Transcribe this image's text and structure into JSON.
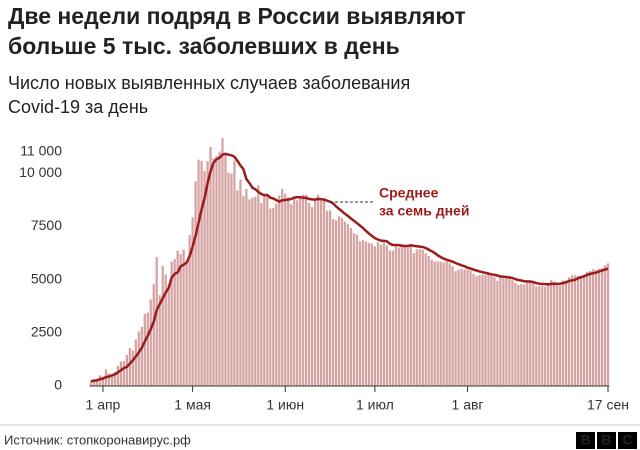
{
  "chart_data": {
    "type": "bar",
    "title": [
      "Две недели подряд в России выявляют",
      "больше 5 тыс. заболевших в день"
    ],
    "subtitle": [
      "Число новых выявленных случаев заболевания",
      "Covid-19 за день"
    ],
    "source": "Источник: стопкоронавирус.рф",
    "logo": [
      "B",
      "B",
      "C"
    ],
    "color": "#d6a3a3",
    "categories": [
      null,
      null,
      null,
      null,
      "1 апр",
      null,
      null,
      null,
      null,
      null,
      null,
      null,
      null,
      null,
      null,
      null,
      null,
      null,
      null,
      null,
      null,
      null,
      null,
      null,
      null,
      null,
      null,
      null,
      null,
      null,
      null,
      null,
      null,
      null,
      "1 мая",
      null,
      null,
      null,
      null,
      null,
      null,
      null,
      null,
      null,
      null,
      null,
      null,
      null,
      null,
      null,
      null,
      null,
      null,
      null,
      null,
      null,
      null,
      null,
      null,
      null,
      null,
      null,
      null,
      null,
      null,
      "1 июн",
      null,
      null,
      null,
      null,
      null,
      null,
      null,
      null,
      null,
      null,
      null,
      null,
      null,
      null,
      null,
      null,
      null,
      null,
      null,
      null,
      null,
      null,
      null,
      null,
      null,
      null,
      null,
      null,
      null,
      "1 июл",
      null,
      null,
      null,
      null,
      null,
      null,
      null,
      null,
      null,
      null,
      null,
      null,
      null,
      null,
      null,
      null,
      null,
      null,
      null,
      null,
      null,
      null,
      null,
      null,
      null,
      null,
      null,
      null,
      null,
      null,
      "1 авг",
      null,
      null,
      null,
      null,
      null,
      null,
      null,
      null,
      null,
      null,
      null,
      null,
      null,
      null,
      null,
      null,
      null,
      null,
      null,
      null,
      null,
      null,
      null,
      null,
      null,
      null,
      null,
      null,
      null,
      null,
      null,
      null,
      null,
      null,
      null,
      null,
      null,
      null,
      null,
      null,
      null,
      null,
      null,
      null,
      null,
      null,
      "17 сен"
    ],
    "values": [
      228,
      270,
      302,
      500,
      440,
      771,
      601,
      582,
      658,
      954,
      1154,
      1175,
      1459,
      1786,
      1667,
      2186,
      2558,
      2774,
      3388,
      3448,
      4070,
      4785,
      6060,
      4268,
      5642,
      5236,
      4774,
      5849,
      5966,
      6361,
      6198,
      6411,
      5841,
      7099,
      7933,
      9623,
      10633,
      10581,
      10102,
      10559,
      11231,
      10699,
      10817,
      11012,
      11656,
      10899,
      10028,
      9974,
      10598,
      9200,
      9709,
      8926,
      9263,
      8764,
      8849,
      8894,
      9434,
      8599,
      8946,
      8915,
      8338,
      8371,
      8572,
      8952,
      9268,
      9035,
      8863,
      8536,
      8831,
      8726,
      8855,
      8984,
      8985,
      8595,
      8404,
      8779,
      8987,
      8706,
      8835,
      8246,
      8248,
      7843,
      7790,
      7972,
      7889,
      7728,
      7600,
      7425,
      7176,
      7113,
      6800,
      6852,
      6791,
      6719,
      6693,
      6556,
      6760,
      6632,
      6736,
      6611,
      6368,
      6365,
      6562,
      6509,
      6635,
      6615,
      6611,
      6537,
      6248,
      6422,
      6428,
      6406,
      6234,
      6109,
      5940,
      5842,
      5862,
      5848,
      5811,
      5871,
      5765,
      5635,
      5395,
      5475,
      5509,
      5482,
      5462,
      5427,
      5267,
      5159,
      5204,
      5241,
      5212,
      5241,
      5189,
      5118,
      4945,
      5102,
      5057,
      5061,
      5065,
      4969,
      4839,
      4748,
      4790,
      4767,
      4870,
      4921,
      4852,
      4676,
      4696,
      4711,
      4676,
      4829,
      4980,
      4897,
      4729,
      4729,
      4952,
      4960,
      5110,
      5205,
      5195,
      5185,
      5099,
      5172,
      5363,
      5406,
      5488,
      5449,
      5509,
      5529,
      5670,
      5762
    ],
    "average": {
      "name": [
        "Среднее",
        "за семь дней"
      ],
      "color": "#9b1c1c",
      "values": [
        228,
        250,
        267,
        325,
        348,
        419,
        445,
        495,
        551,
        644,
        737,
        842,
        898,
        1054,
        1203,
        1385,
        1583,
        1801,
        2090,
        2370,
        2677,
        3030,
        3567,
        3843,
        4116,
        4387,
        4615,
        5099,
        5268,
        5343,
        5618,
        5699,
        5800,
        6104,
        6544,
        7067,
        7675,
        8300,
        8833,
        9512,
        10090,
        10485,
        10660,
        10718,
        10872,
        10910,
        10866,
        10840,
        10770,
        10587,
        10366,
        10188,
        9728,
        9535,
        9321,
        9243,
        9119,
        9020,
        8961,
        8980,
        8850,
        8812,
        8735,
        8665,
        8732,
        8740,
        8764,
        8788,
        8854,
        8876,
        8870,
        8847,
        8840,
        8788,
        8769,
        8760,
        8791,
        8778,
        8756,
        8709,
        8658,
        8578,
        8437,
        8322,
        8207,
        8087,
        7986,
        7868,
        7762,
        7648,
        7536,
        7427,
        7292,
        7167,
        7053,
        6949,
        6884,
        6831,
        6818,
        6798,
        6688,
        6624,
        6627,
        6619,
        6597,
        6579,
        6582,
        6608,
        6588,
        6564,
        6551,
        6533,
        6483,
        6407,
        6333,
        6249,
        6140,
        6061,
        5984,
        5936,
        5886,
        5842,
        5779,
        5724,
        5673,
        5626,
        5561,
        5519,
        5469,
        5425,
        5385,
        5346,
        5313,
        5283,
        5247,
        5225,
        5194,
        5150,
        5136,
        5124,
        5104,
        5073,
        5016,
        4981,
        4958,
        4919,
        4914,
        4908,
        4884,
        4833,
        4805,
        4799,
        4787,
        4781,
        4794,
        4809,
        4798,
        4805,
        4840,
        4878,
        4935,
        4961,
        4990,
        5066,
        5114,
        5161,
        5221,
        5268,
        5298,
        5329,
        5375,
        5431,
        5468,
        5515
      ]
    },
    "ylim": [
      0,
      11700
    ],
    "yticks": [
      0,
      2500,
      5000,
      7500,
      {
        "value": 10000,
        "label": "10 000"
      },
      {
        "value": 11000,
        "label": "11 000"
      }
    ],
    "grid": false
  }
}
